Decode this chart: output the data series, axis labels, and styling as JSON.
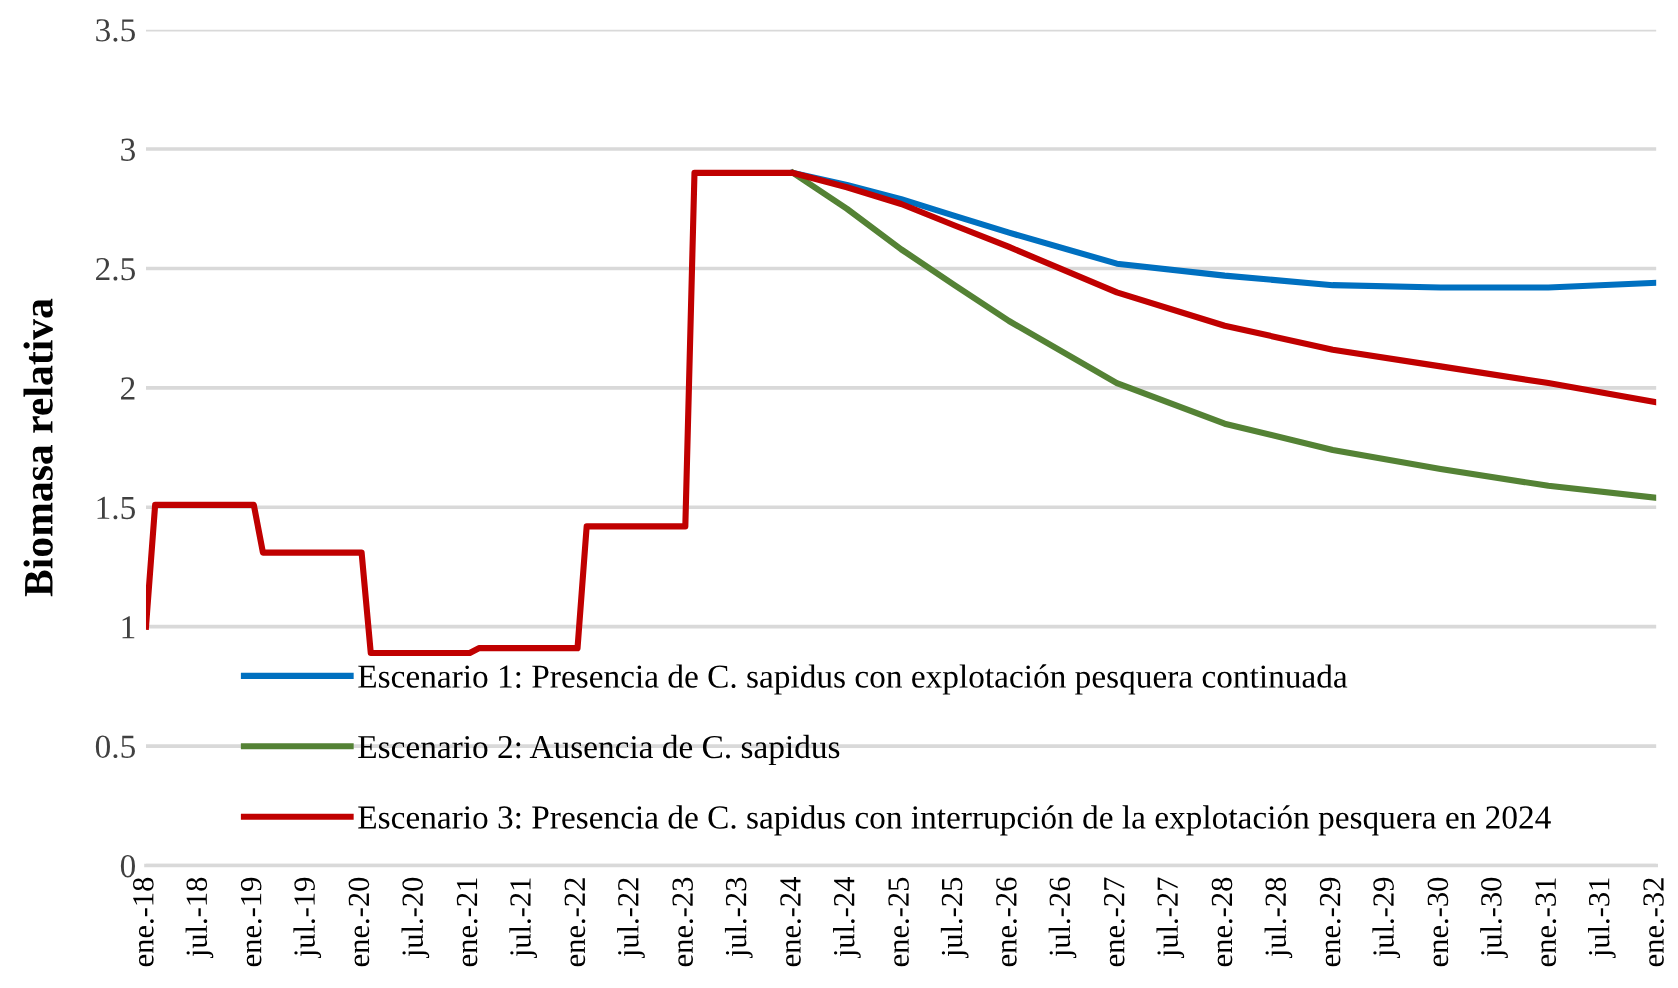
{
  "chart_data": {
    "type": "line",
    "ylabel": "Biomasa relativa",
    "series": [
      {
        "name": "Escenario 1: Presencia de C. sapidus con explotación pesquera continuada",
        "color": "#0070c0",
        "x": [
          "2024-01",
          "2024-07",
          "2025-01",
          "2025-07",
          "2026-01",
          "2027-01",
          "2028-01",
          "2029-01",
          "2030-01",
          "2031-01",
          "2032-01"
        ],
        "values": [
          2.9,
          2.85,
          2.79,
          2.72,
          2.65,
          2.52,
          2.47,
          2.43,
          2.42,
          2.42,
          2.44
        ]
      },
      {
        "name": "Escenario 2: Ausencia de C. sapidus",
        "color": "#548235",
        "x": [
          "2024-01",
          "2024-07",
          "2025-01",
          "2025-07",
          "2026-01",
          "2027-01",
          "2028-01",
          "2029-01",
          "2030-01",
          "2031-01",
          "2032-01"
        ],
        "values": [
          2.9,
          2.75,
          2.58,
          2.43,
          2.28,
          2.02,
          1.85,
          1.74,
          1.66,
          1.59,
          1.54
        ]
      },
      {
        "name": "Escenario 3: Presencia de C. sapidus con interrupción de la explotación pesquera en 2024",
        "color": "#c00000",
        "x": [
          "2018-01",
          "2018-02",
          "2019-01",
          "2019-02",
          "2020-01",
          "2020-02",
          "2021-01",
          "2021-02",
          "2022-01",
          "2022-02",
          "2023-01",
          "2023-02",
          "2024-01",
          "2024-07",
          "2025-01",
          "2025-07",
          "2026-01",
          "2027-01",
          "2028-01",
          "2029-01",
          "2030-01",
          "2031-01",
          "2032-01"
        ],
        "values": [
          1.0,
          1.51,
          1.51,
          1.31,
          1.31,
          0.89,
          0.89,
          0.91,
          0.91,
          1.42,
          1.42,
          2.9,
          2.9,
          2.84,
          2.77,
          2.68,
          2.59,
          2.4,
          2.26,
          2.16,
          2.09,
          2.02,
          1.94
        ]
      }
    ],
    "xlim": [
      "2018-01",
      "2032-01"
    ],
    "xticks": [
      {
        "value": "2018-01",
        "label": "ene.-18"
      },
      {
        "value": "2018-07",
        "label": "jul.-18"
      },
      {
        "value": "2019-01",
        "label": "ene.-19"
      },
      {
        "value": "2019-07",
        "label": "jul.-19"
      },
      {
        "value": "2020-01",
        "label": "ene.-20"
      },
      {
        "value": "2020-07",
        "label": "jul.-20"
      },
      {
        "value": "2021-01",
        "label": "ene.-21"
      },
      {
        "value": "2021-07",
        "label": "jul.-21"
      },
      {
        "value": "2022-01",
        "label": "ene.-22"
      },
      {
        "value": "2022-07",
        "label": "jul.-22"
      },
      {
        "value": "2023-01",
        "label": "ene.-23"
      },
      {
        "value": "2023-07",
        "label": "jul.-23"
      },
      {
        "value": "2024-01",
        "label": "ene.-24"
      },
      {
        "value": "2024-07",
        "label": "jul.-24"
      },
      {
        "value": "2025-01",
        "label": "ene.-25"
      },
      {
        "value": "2025-07",
        "label": "jul.-25"
      },
      {
        "value": "2026-01",
        "label": "ene.-26"
      },
      {
        "value": "2026-07",
        "label": "jul.-26"
      },
      {
        "value": "2027-01",
        "label": "ene.-27"
      },
      {
        "value": "2027-07",
        "label": "jul.-27"
      },
      {
        "value": "2028-01",
        "label": "ene.-28"
      },
      {
        "value": "2028-07",
        "label": "jul.-28"
      },
      {
        "value": "2029-01",
        "label": "ene.-29"
      },
      {
        "value": "2029-07",
        "label": "jul.-29"
      },
      {
        "value": "2030-01",
        "label": "ene.-30"
      },
      {
        "value": "2030-07",
        "label": "jul.-30"
      },
      {
        "value": "2031-01",
        "label": "ene.-31"
      },
      {
        "value": "2031-07",
        "label": "jul.-31"
      },
      {
        "value": "2032-01",
        "label": "ene.-32"
      }
    ],
    "ylim": [
      0,
      3.5
    ],
    "yticks": [
      0,
      0.5,
      1,
      1.5,
      2,
      2.5,
      3,
      3.5
    ],
    "grid": "y",
    "legend": "bottom"
  }
}
